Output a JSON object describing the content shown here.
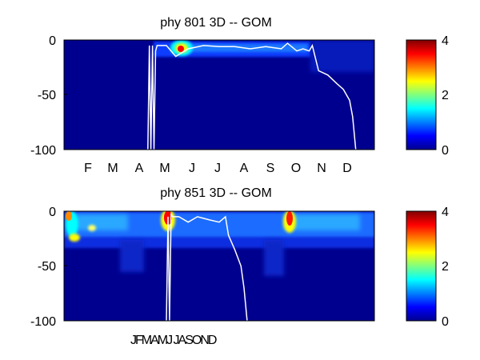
{
  "chart_data": [
    {
      "type": "heatmap",
      "title": "phy  801 3D   -- GOM",
      "ylim": [
        -100,
        0
      ],
      "yticks": [
        0,
        -50,
        -100
      ],
      "xtick_labels": [
        "F",
        "M",
        "A",
        "M",
        "J",
        "J",
        "A",
        "S",
        "O",
        "N",
        "D"
      ],
      "colorbar": {
        "range": [
          0,
          4
        ],
        "ticks": [
          0,
          2,
          4
        ]
      },
      "line": {
        "color": "#ffffff",
        "x": [
          0.27,
          0.275,
          0.28,
          0.285,
          0.29,
          0.295,
          0.3,
          0.33,
          0.36,
          0.4,
          0.45,
          0.5,
          0.55,
          0.6,
          0.65,
          0.7,
          0.72,
          0.75,
          0.77,
          0.79,
          0.8,
          0.82,
          0.85,
          0.88,
          0.9,
          0.92,
          0.93,
          0.94
        ],
        "y": [
          -100,
          -5,
          -100,
          -5,
          -100,
          -10,
          -5,
          -5,
          -15,
          -8,
          -5,
          -6,
          -6,
          -8,
          -6,
          -8,
          -3,
          -10,
          -8,
          -10,
          -5,
          -28,
          -32,
          -40,
          -45,
          -55,
          -70,
          -100
        ]
      }
    },
    {
      "type": "heatmap",
      "title": "phy  851 3D   -- GOM",
      "ylim": [
        -100,
        0
      ],
      "yticks": [
        0,
        -50,
        -100
      ],
      "xtick_labels_text": "JFMAMJ JASOND",
      "colorbar": {
        "range": [
          0,
          4
        ],
        "ticks": [
          0,
          2,
          4
        ]
      },
      "line": {
        "color": "#ffffff",
        "x": [
          0.33,
          0.335,
          0.34,
          0.345,
          0.35,
          0.37,
          0.4,
          0.43,
          0.47,
          0.5,
          0.52,
          0.53,
          0.55,
          0.57,
          0.58,
          0.59
        ],
        "y": [
          -100,
          -5,
          -100,
          -3,
          -5,
          -5,
          -10,
          -5,
          -8,
          -10,
          -5,
          -22,
          -35,
          -50,
          -70,
          -100
        ]
      }
    }
  ]
}
